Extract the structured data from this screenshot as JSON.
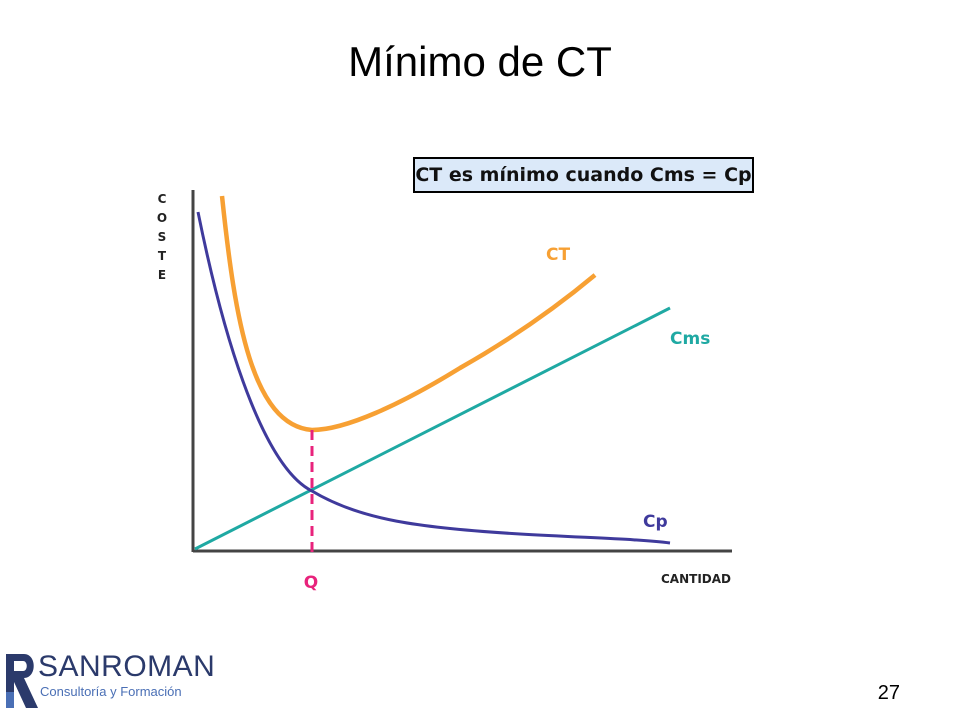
{
  "slide": {
    "title": "Mínimo de CT",
    "page_number": "27"
  },
  "diagram": {
    "callout": "CT es mínimo cuando Cms = Cp",
    "y_axis_label": "COSTE",
    "x_axis_label": "CANTIDAD",
    "q_label": "Q",
    "curves": {
      "ct": "CT",
      "cms": "Cms",
      "cp": "Cp"
    }
  },
  "colors": {
    "ct": "#f7a033",
    "cms": "#1fa9a3",
    "cp": "#3f3a9c",
    "q_marker": "#e8237c",
    "axis": "#444444"
  },
  "logo": {
    "name": "SANROMAN",
    "tagline": "Consultoría y Formación",
    "brand_color": "#2b3a6b",
    "accent_color": "#4a6fb5"
  }
}
